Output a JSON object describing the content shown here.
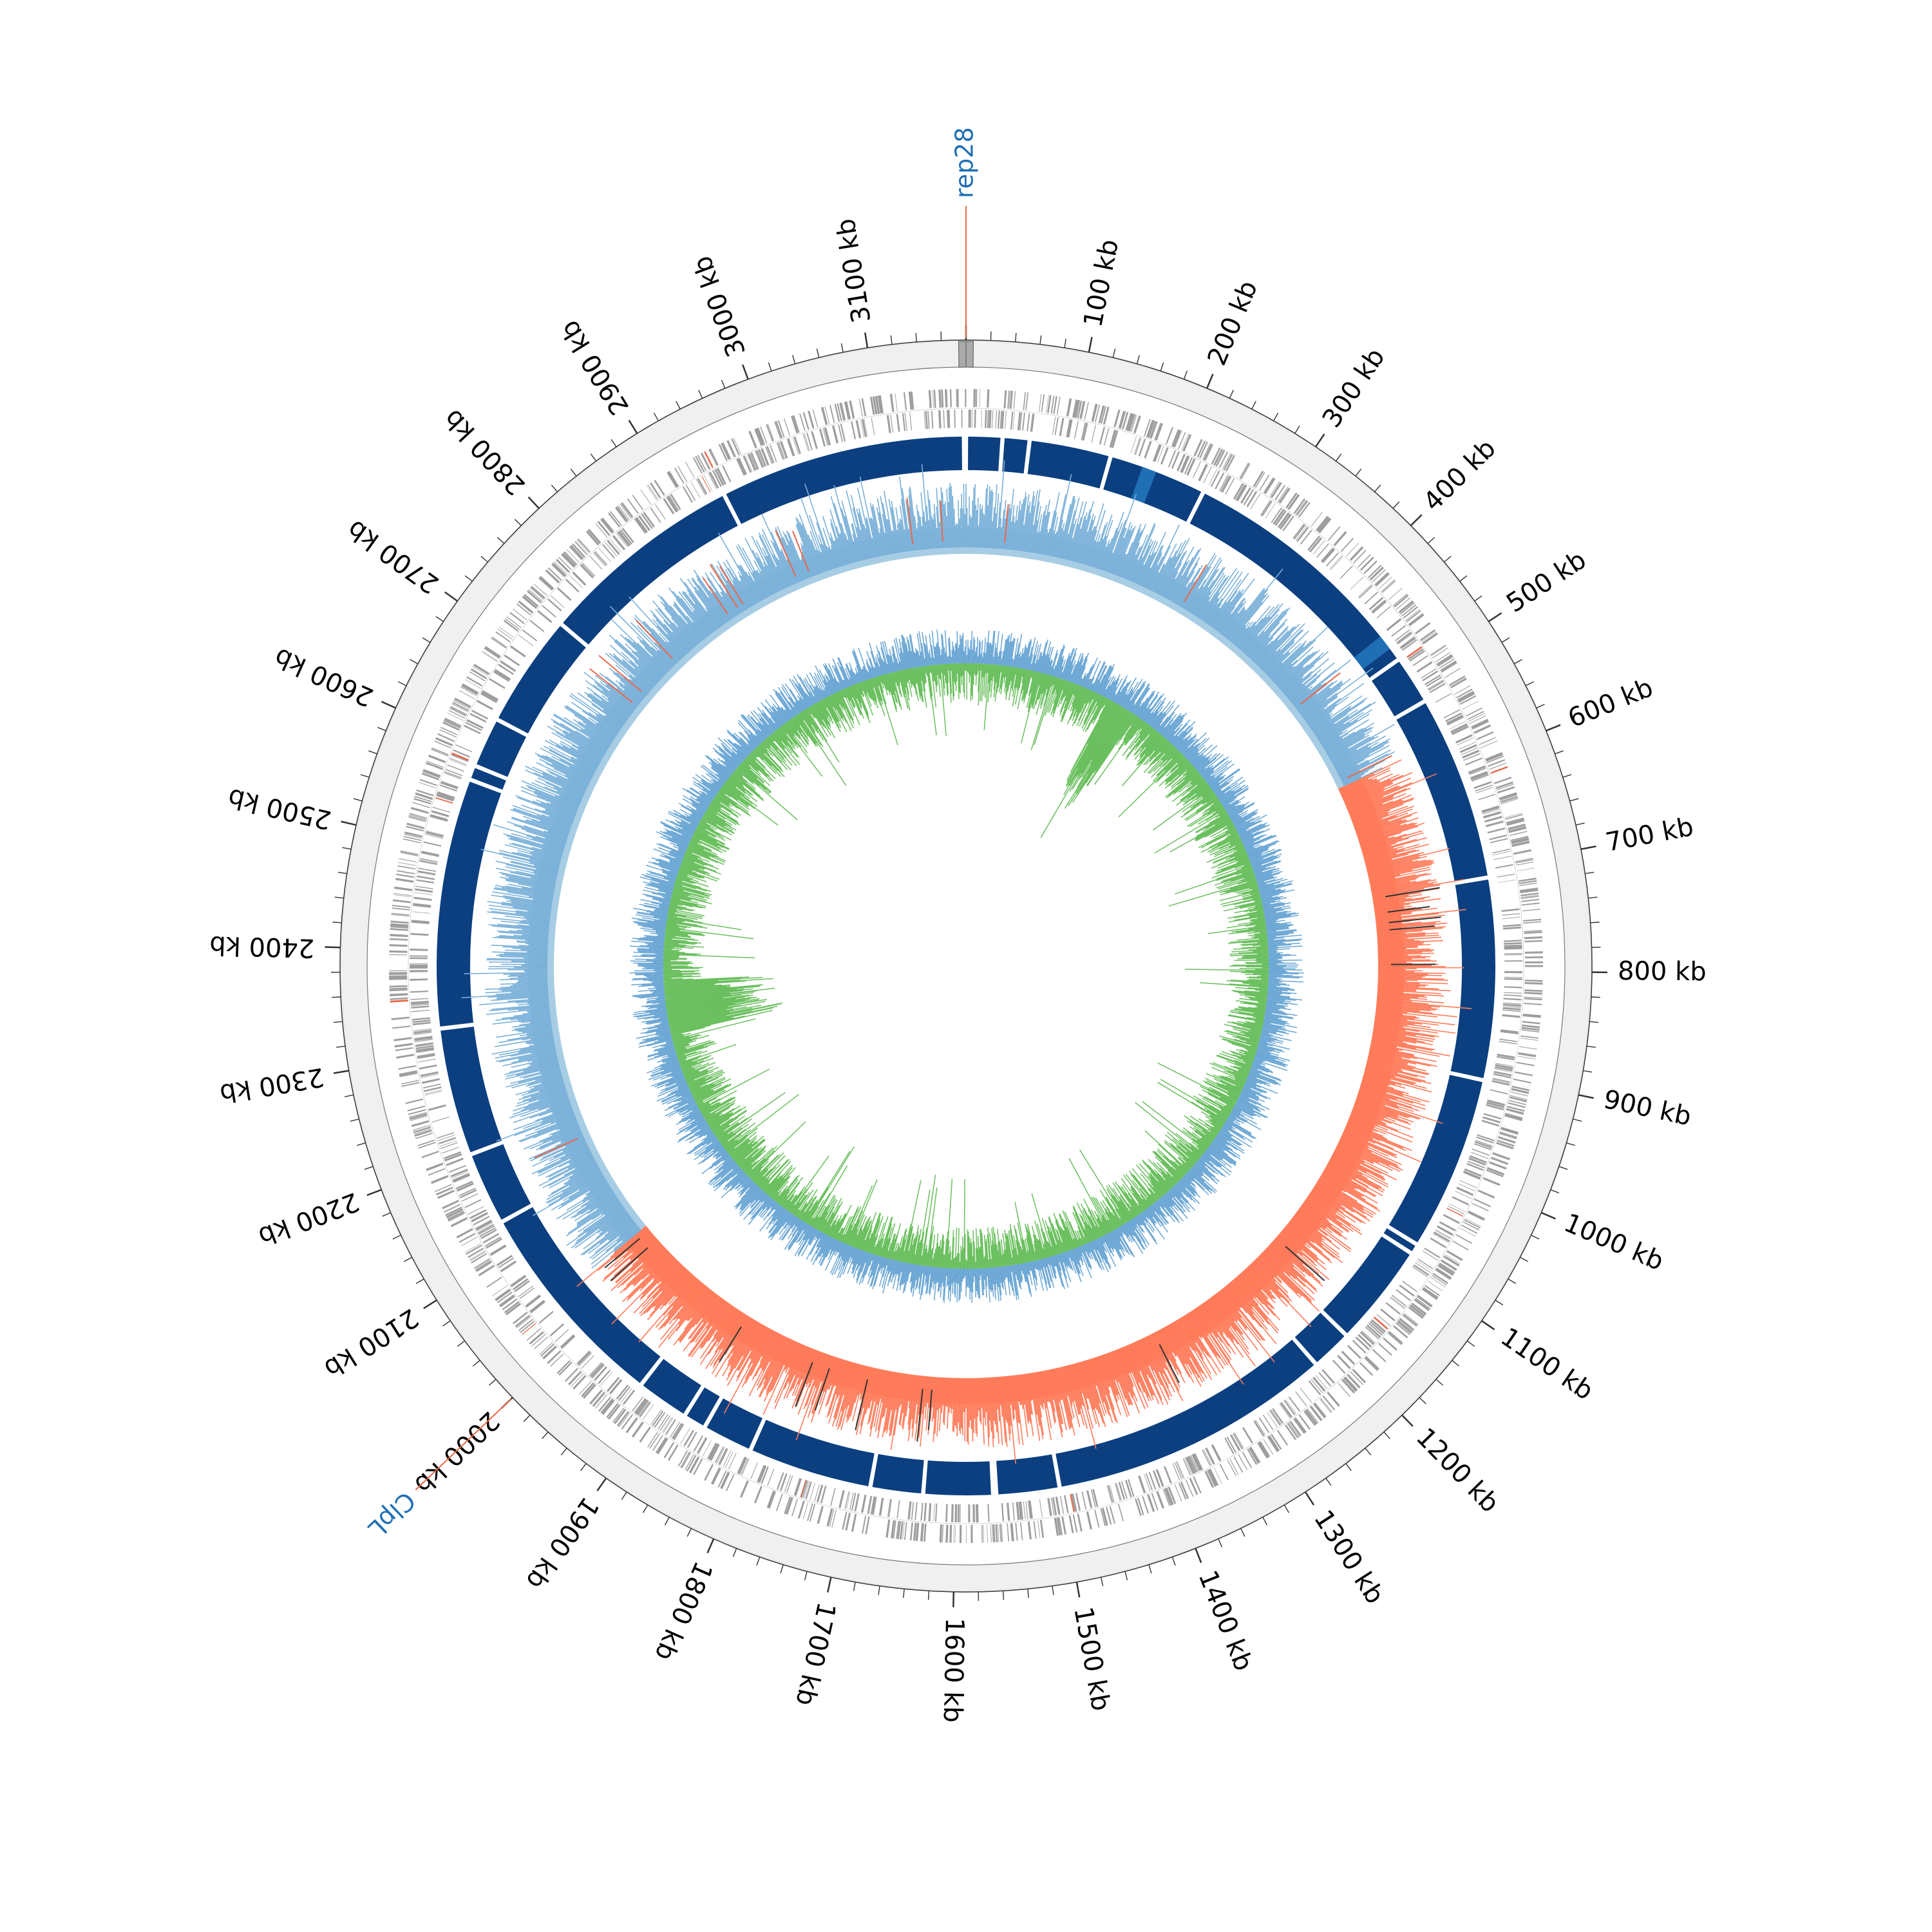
{
  "genome": {
    "length_kb": 3180,
    "unit": "kb",
    "tick_labels": [
      "100 kb",
      "200 kb",
      "300 kb",
      "400 kb",
      "500 kb",
      "600 kb",
      "700 kb",
      "800 kb",
      "900 kb",
      "1000 kb",
      "1100 kb",
      "1200 kb",
      "1300 kb",
      "1400 kb",
      "1500 kb",
      "1600 kb",
      "1700 kb",
      "1800 kb",
      "1900 kb",
      "2000 kb",
      "2100 kb",
      "2200 kb",
      "2300 kb",
      "2400 kb",
      "2500 kb",
      "2600 kb",
      "2700 kb",
      "2800 kb",
      "2900 kb",
      "3000 kb",
      "3100 kb"
    ],
    "tick_positions_kb": [
      100,
      200,
      300,
      400,
      500,
      600,
      700,
      800,
      900,
      1000,
      1100,
      1200,
      1300,
      1400,
      1500,
      1600,
      1700,
      1800,
      1900,
      2000,
      2100,
      2200,
      2300,
      2400,
      2500,
      2600,
      2700,
      2800,
      2900,
      3000,
      3100
    ],
    "minor_tick_step_kb": 20
  },
  "annotations": [
    {
      "label": "rep28",
      "position_kb": 0
    },
    {
      "label": "ClpL",
      "position_kb": 2000
    }
  ],
  "colors": {
    "outer_ring": "#f0f0f0",
    "gene_gray": "#9e9e9e",
    "gene_red": "#e8694a",
    "contig_navy": "#0b3f80",
    "contig_blue": "#1f6fb5",
    "gc_blue": "#7bb1d9",
    "gc_light": "#a6cde4",
    "gc_red": "#ff7b5a",
    "skew_blue": "#6aa6d4",
    "skew_green": "#6abf5e",
    "label_blue": "#1f6fb5",
    "annotation_line": "#e8694a",
    "tick": "#333333"
  },
  "tracks": {
    "contigs_gaps_kb": [
      35,
      61,
      140,
      178,
      235,
      483,
      530,
      710,
      905,
      1075,
      1085,
      1185,
      1225,
      1500,
      1561,
      1564,
      1631,
      1682,
      1802,
      1851,
      1873,
      1924,
      2130,
      2201,
      2325,
      2567,
      2581,
      2630,
      2740,
      2940
    ],
    "contig_blue_segments_kb": [
      [
        172,
        186
      ],
      [
        455,
        470
      ]
    ],
    "gc_content_red_range_kb": [
      [
        570,
        2040
      ]
    ],
    "skew_green_bulge_kb": [
      [
        250,
        300
      ],
      [
        2270,
        2360
      ]
    ]
  }
}
